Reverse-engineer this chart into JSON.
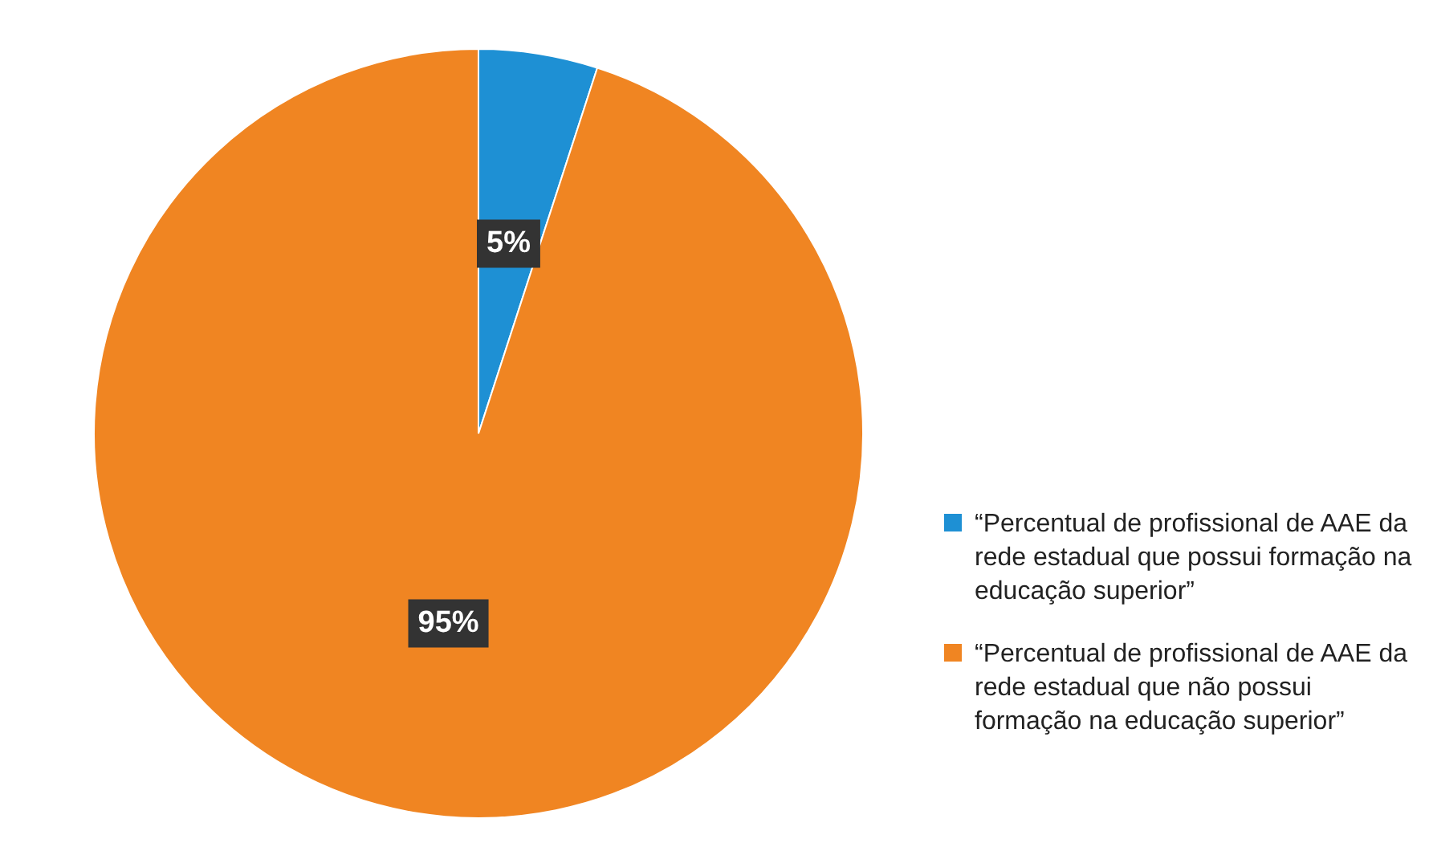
{
  "chart_data": {
    "type": "pie",
    "categories": [
      "“Percentual de profissional de AAE da rede estadual que possui formação na educação superior”",
      "“Percentual de profissional de AAE da rede estadual que não possui formação na educação superior”"
    ],
    "values": [
      5,
      95
    ],
    "colors": [
      "#1e90d4",
      "#f08522"
    ],
    "value_labels": [
      "5%",
      "95%"
    ],
    "legend": "right"
  }
}
